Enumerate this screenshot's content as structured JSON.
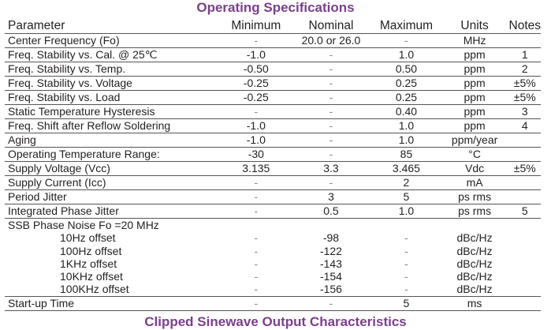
{
  "title": "Operating Specifications",
  "next_title": "Clipped Sinewave Output Characteristics",
  "headers": [
    "Parameter",
    "Minimum",
    "Nominal",
    "Maximum",
    "Units",
    "Notes"
  ],
  "rows": [
    [
      "Center Frequency (Fo)",
      "-",
      "20.0 or 26.0",
      "-",
      "MHz",
      ""
    ],
    [
      "Freq. Stability vs. Cal. @ 25℃",
      "-1.0",
      "-",
      "1.0",
      "ppm",
      "1"
    ],
    [
      "Freq. Stability vs. Temp.",
      "-0.50",
      "-",
      "0.50",
      "ppm",
      "2"
    ],
    [
      "Freq. Stability vs. Voltage",
      "-0.25",
      "-",
      "0.25",
      "ppm",
      "±5%"
    ],
    [
      "Freq. Stability vs. Load",
      "-0.25",
      "-",
      "0.25",
      "ppm",
      "±5%"
    ],
    [
      "Static Temperature Hysteresis",
      "-",
      "-",
      "0.40",
      "ppm",
      "3"
    ],
    [
      "Freq. Shift after Reflow Soldering",
      "-1.0",
      "-",
      "1.0",
      "ppm",
      "4"
    ],
    [
      "Aging",
      "-1.0",
      "-",
      "1.0",
      "ppm/year",
      ""
    ],
    [
      "Operating Temperature Range:",
      "-30",
      "-",
      "85",
      "°C",
      ""
    ],
    [
      "Supply Voltage (Vcc)",
      "3.135",
      "3.3",
      "3.465",
      "Vdc",
      "±5%"
    ],
    [
      "Supply Current (Icc)",
      "-",
      "-",
      "2",
      "mA",
      ""
    ],
    [
      "Period Jitter",
      "-",
      "3",
      "5",
      "ps rms",
      ""
    ],
    [
      "Integrated Phase Jitter",
      "-",
      "0.5",
      "1.0",
      "ps rms",
      "5"
    ]
  ],
  "phase_noise": {
    "label": "SSB Phase Noise Fo =20 MHz",
    "rows": [
      [
        "10Hz offset",
        "-",
        "-98",
        "-",
        "dBc/Hz",
        ""
      ],
      [
        "100Hz offset",
        "-",
        "-122",
        "-",
        "dBc/Hz",
        ""
      ],
      [
        "1KHz offset",
        "-",
        "-143",
        "-",
        "dBc/Hz",
        ""
      ],
      [
        "10KHz offset",
        "-",
        "-154",
        "-",
        "dBc/Hz",
        ""
      ],
      [
        "100KHz offset",
        "-",
        "-156",
        "-",
        "dBc/Hz",
        ""
      ]
    ]
  },
  "startup": [
    "Start-up Time",
    "-",
    "-",
    "5",
    "ms",
    ""
  ]
}
